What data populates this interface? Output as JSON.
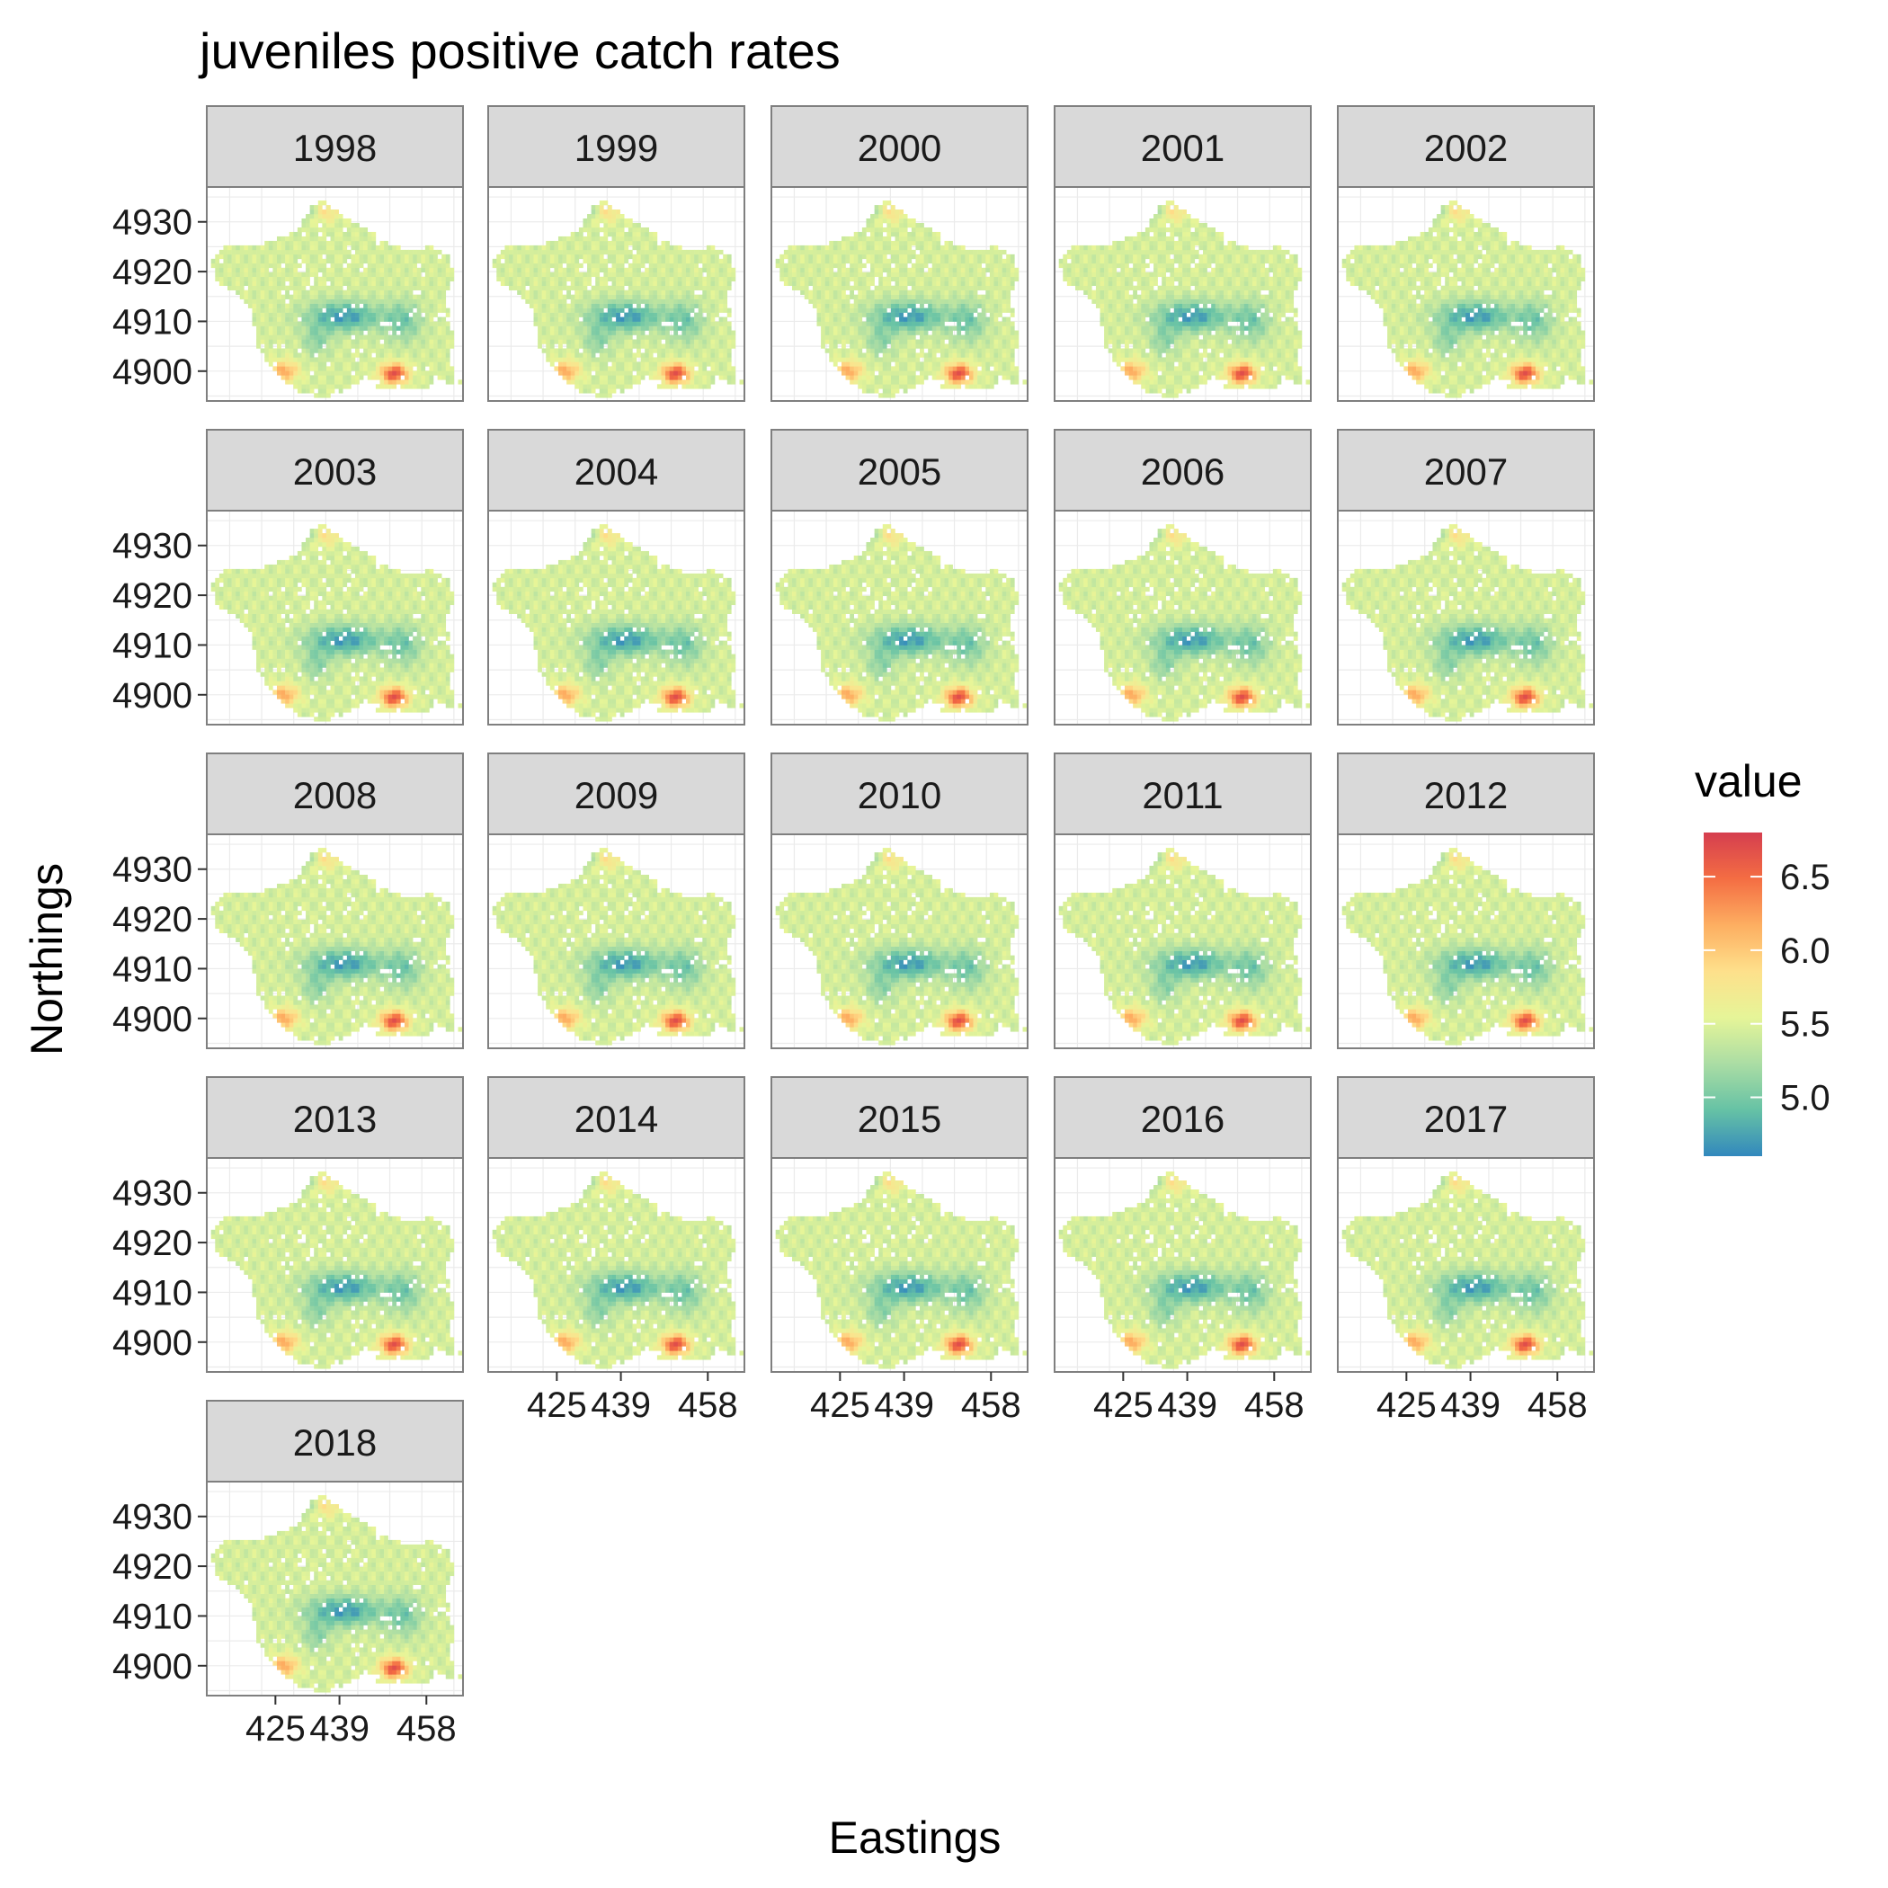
{
  "chart_data": {
    "type": "heatmap",
    "title": "juveniles positive catch rates",
    "xlabel": "Eastings",
    "ylabel": "Northings",
    "facets": [
      "1998",
      "1999",
      "2000",
      "2001",
      "2002",
      "2003",
      "2004",
      "2005",
      "2006",
      "2007",
      "2008",
      "2009",
      "2010",
      "2011",
      "2012",
      "2013",
      "2014",
      "2015",
      "2016",
      "2017",
      "2018"
    ],
    "x_ticks": [
      425,
      439,
      458
    ],
    "y_ticks": [
      4900,
      4910,
      4920,
      4930
    ],
    "x_range": [
      410,
      466
    ],
    "y_range": [
      4894,
      4937
    ],
    "legend": {
      "title": "value",
      "ticks": [
        5.0,
        5.5,
        6.0,
        6.5
      ],
      "range": [
        4.6,
        6.8
      ],
      "placement": "right",
      "colors": [
        "#3288bd",
        "#66c2a5",
        "#abdda4",
        "#e6f598",
        "#fee08b",
        "#fdae61",
        "#f46d43",
        "#d53e4f"
      ]
    },
    "grid": true
  }
}
